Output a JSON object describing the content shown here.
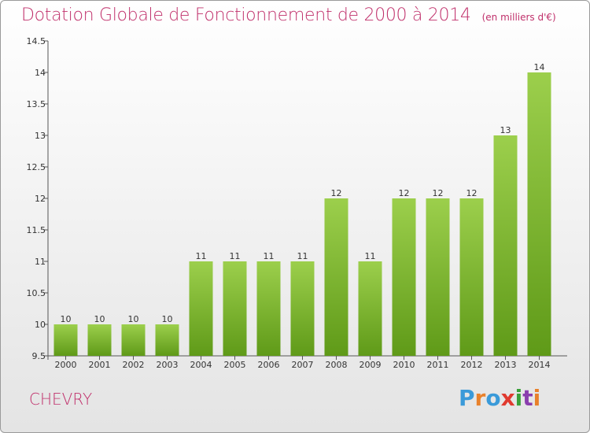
{
  "header": {
    "title": "Dotation Globale de Fonctionnement de 2000 à 2014",
    "subtitle": "(en milliers d'€)"
  },
  "footer": {
    "town": "CHEVRY",
    "brand": "Proxiti",
    "brand_colors": [
      "#3a9ad9",
      "#e8812b",
      "#3a9ad9",
      "#e03a2f",
      "#3aa13a",
      "#8a3fae",
      "#e8812b"
    ]
  },
  "colors": {
    "bar_top": "#9ccf4c",
    "bar_bottom": "#5f9a18",
    "title": "#c0306b"
  },
  "chart_data": {
    "type": "bar",
    "title": "Dotation Globale de Fonctionnement de 2000 à 2014",
    "subtitle": "(en milliers d'€)",
    "categories": [
      "2000",
      "2001",
      "2002",
      "2003",
      "2004",
      "2005",
      "2006",
      "2007",
      "2008",
      "2009",
      "2010",
      "2011",
      "2012",
      "2013",
      "2014"
    ],
    "values": [
      10,
      10,
      10,
      10,
      11,
      11,
      11,
      11,
      12,
      11,
      12,
      12,
      12,
      13,
      14
    ],
    "value_labels": [
      "10",
      "10",
      "10",
      "10",
      "11",
      "11",
      "11",
      "11",
      "12",
      "11",
      "12",
      "12",
      "12",
      "13",
      "14"
    ],
    "ylim": [
      9.5,
      14.5
    ],
    "yticks": [
      9.5,
      10,
      10.5,
      11,
      11.5,
      12,
      12.5,
      13,
      13.5,
      14,
      14.5
    ],
    "ytick_labels": [
      "9.5",
      "10",
      "10.5",
      "11",
      "11.5",
      "12",
      "12.5",
      "13",
      "13.5",
      "14",
      "14.5"
    ],
    "xlabel": "",
    "ylabel": "",
    "grid": false,
    "legend": "none"
  }
}
